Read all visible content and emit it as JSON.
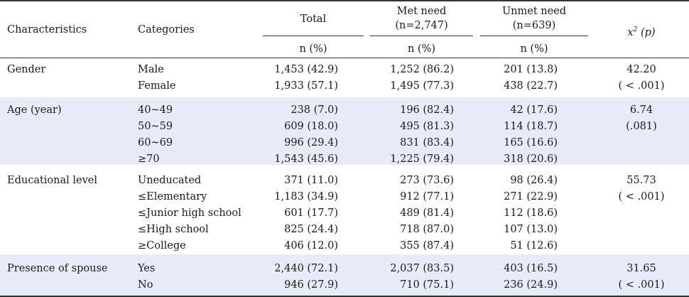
{
  "table": {
    "headers": {
      "characteristics": "Characteristics",
      "categories": "Categories",
      "total": "Total",
      "met_need_line1": "Met need",
      "met_need_line2": "(n=2,747)",
      "unmet_need_line1": "Unmet need",
      "unmet_need_line2": "(n=639)",
      "chi_x": "x",
      "chi_sup": "2",
      "chi_p": "(p)",
      "n_pct": "n (%)"
    },
    "groups": [
      {
        "characteristic": "Gender",
        "categories": [
          "Male",
          "Female"
        ],
        "total": [
          "1,453 (42.9)",
          "1,933 (57.1)"
        ],
        "met": [
          "1,252 (86.2)",
          "1,495 (77.3)"
        ],
        "unmet": [
          "201 (13.8)",
          "438 (22.7)"
        ],
        "chi": [
          "42.20",
          "( < .001)"
        ]
      },
      {
        "characteristic": "Age (year)",
        "categories": [
          "40~49",
          "50~59",
          "60~69",
          "≥70"
        ],
        "total": [
          "238 (7.0)",
          "609 (18.0)",
          "996 (29.4)",
          "1,543 (45.6)"
        ],
        "met": [
          "196 (82.4)",
          "495 (81.3)",
          "831 (83.4)",
          "1,225 (79.4)"
        ],
        "unmet": [
          "42 (17.6)",
          "114 (18.7)",
          "165 (16.6)",
          "318 (20.6)"
        ],
        "chi": [
          "6.74",
          "(.081)"
        ]
      },
      {
        "characteristic": "Educational level",
        "categories": [
          "Uneducated",
          "≤Elementary",
          "≤Junior high school",
          "≤High school",
          "≥College"
        ],
        "total": [
          "371 (11.0)",
          "1,183 (34.9)",
          "601 (17.7)",
          "825 (24.4)",
          "406 (12.0)"
        ],
        "met": [
          "273 (73.6)",
          "912 (77.1)",
          "489 (81.4)",
          "718 (87.0)",
          "355 (87.4)"
        ],
        "unmet": [
          "98 (26.4)",
          "271 (22.9)",
          "112 (18.6)",
          "107 (13.0)",
          "51 (12.6)"
        ],
        "chi": [
          "55.73",
          "( < .001)"
        ]
      },
      {
        "characteristic": "Presence of spouse",
        "categories": [
          "Yes",
          "No"
        ],
        "total": [
          "2,440 (72.1)",
          "946 (27.9)"
        ],
        "met": [
          "2,037 (83.5)",
          "710 (75.1)"
        ],
        "unmet": [
          "403 (16.5)",
          "236 (24.9)"
        ],
        "chi": [
          "31.65",
          "( < .001)"
        ]
      }
    ]
  }
}
